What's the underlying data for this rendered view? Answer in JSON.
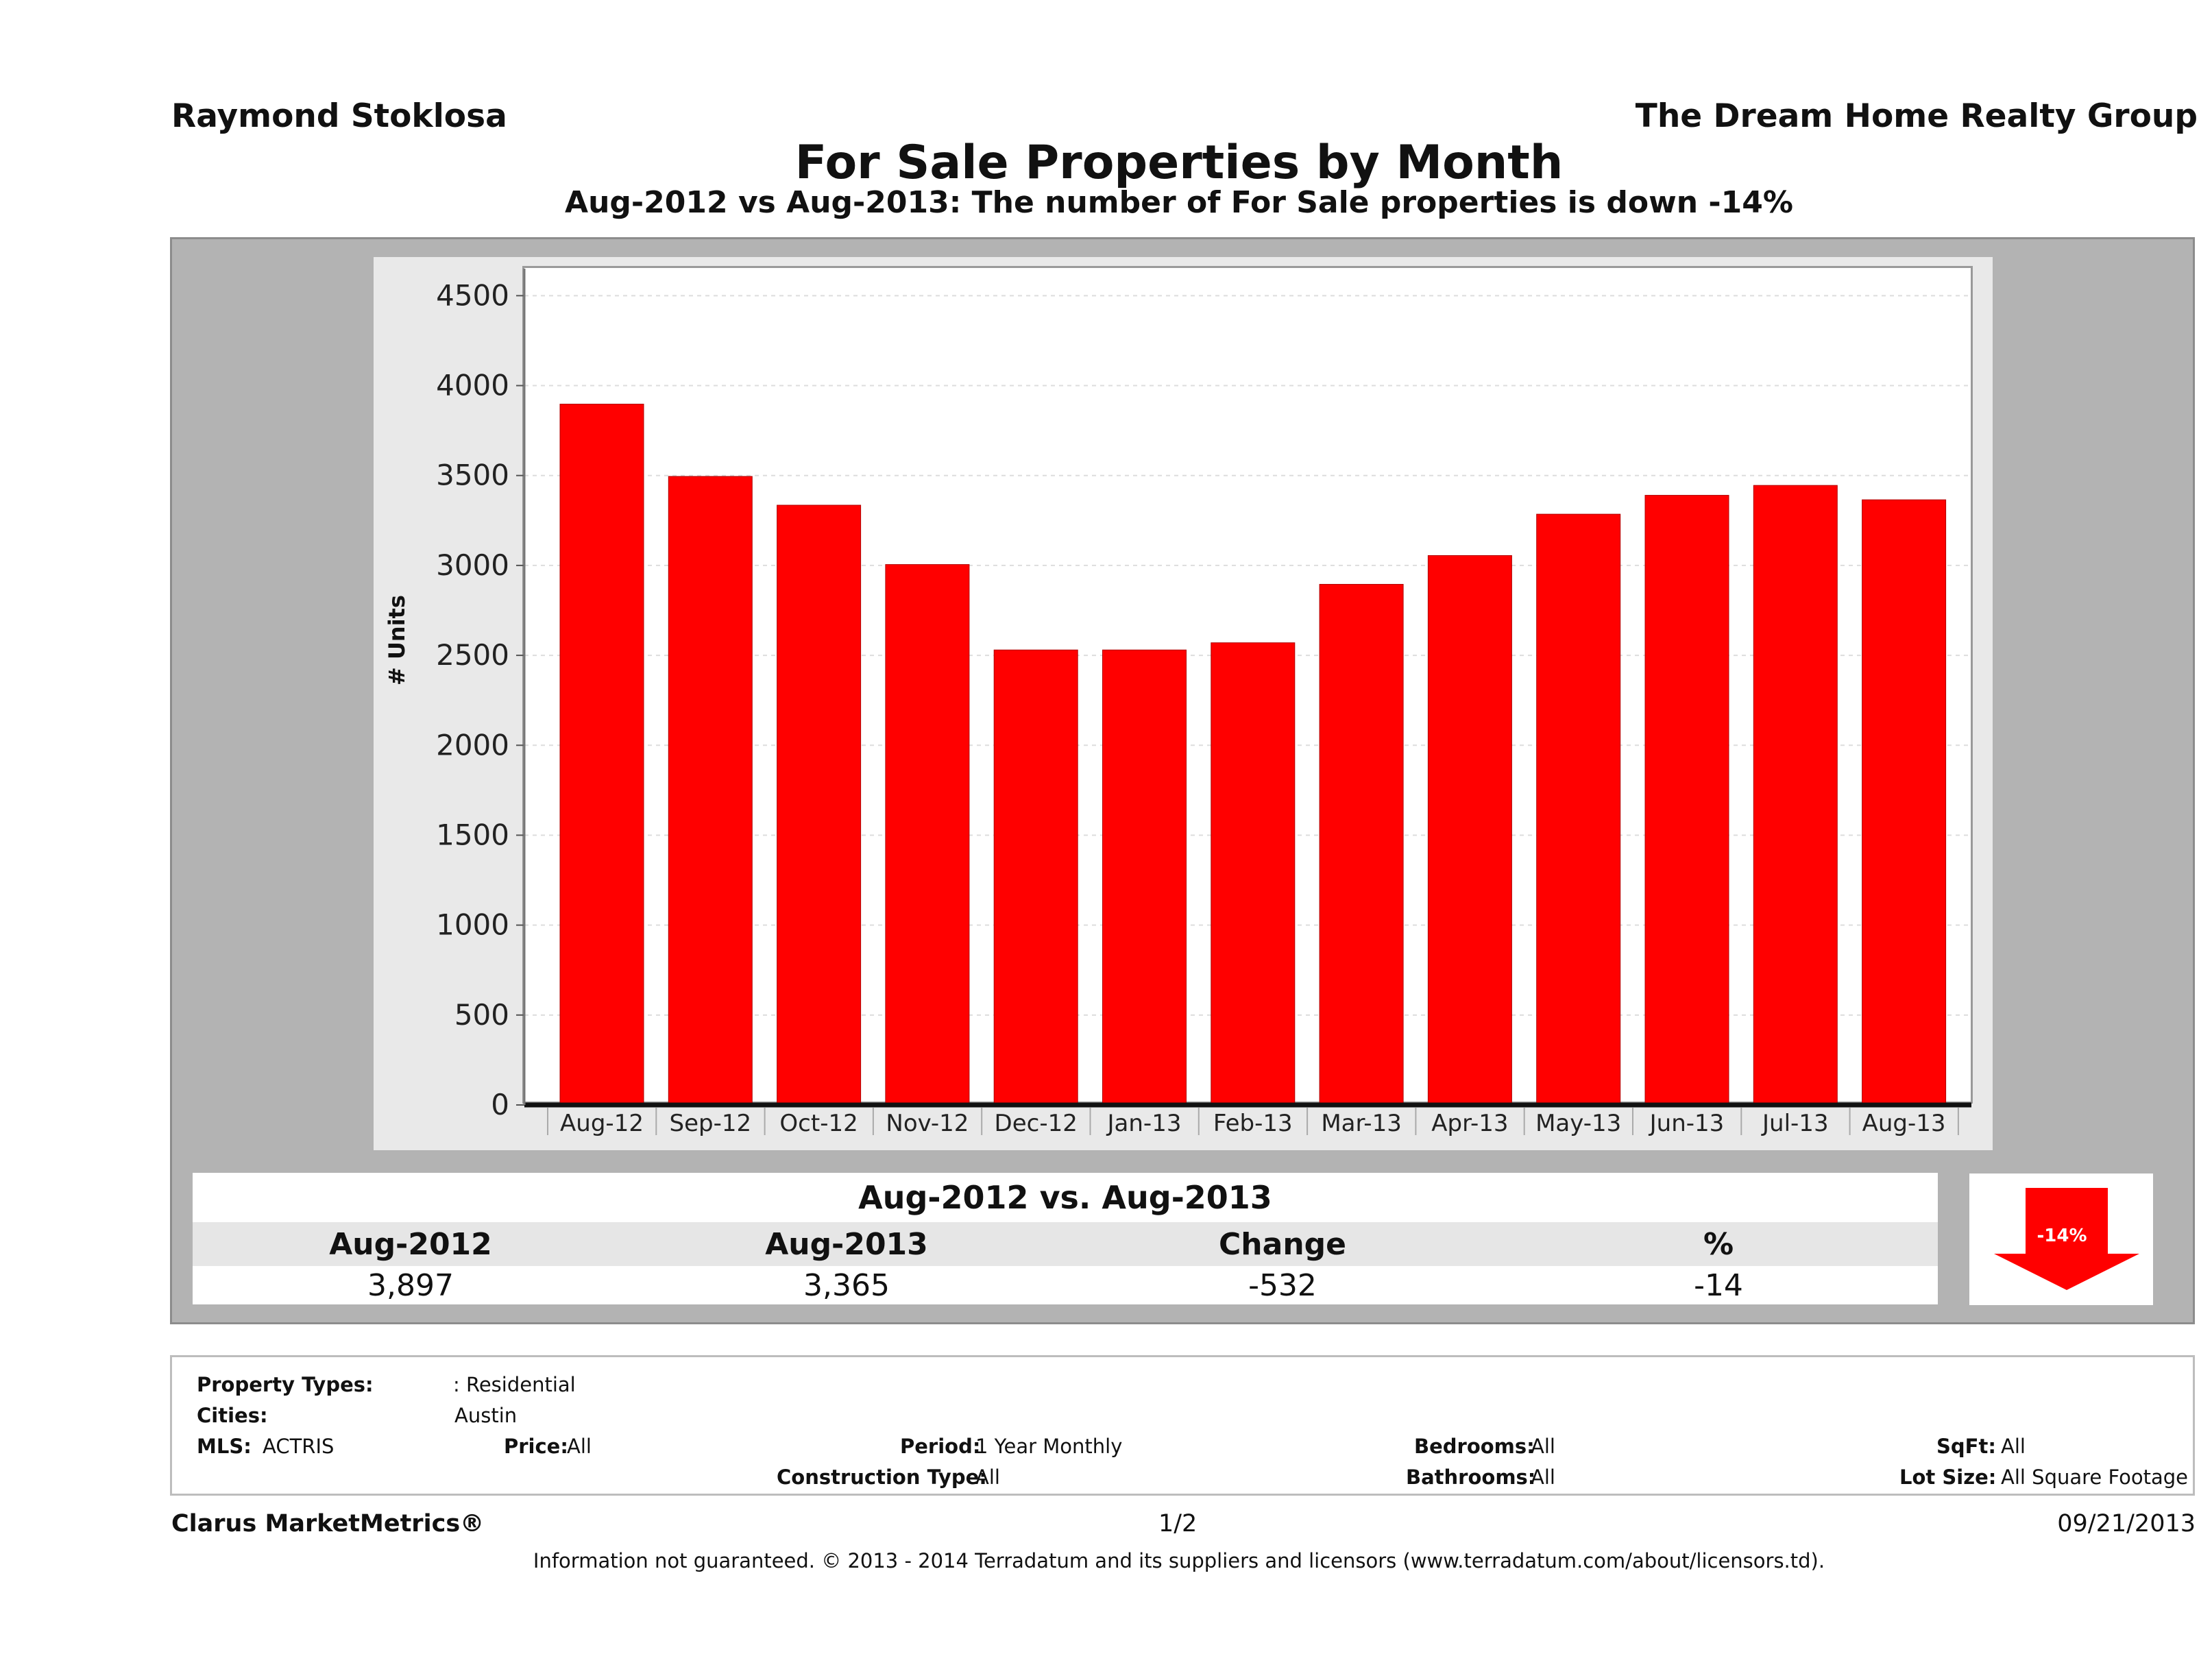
{
  "header": {
    "agent": "Raymond Stoklosa",
    "company": "The Dream Home Realty Group",
    "title": "For Sale Properties by Month",
    "subtitle": "Aug-2012 vs Aug-2013: The number of For Sale  properties is down -14%"
  },
  "chart_data": {
    "type": "bar",
    "title": "For Sale Properties by Month",
    "ylabel": "# Units",
    "categories": [
      "Aug-12",
      "Sep-12",
      "Oct-12",
      "Nov-12",
      "Dec-12",
      "Jan-13",
      "Feb-13",
      "Mar-13",
      "Apr-13",
      "May-13",
      "Jun-13",
      "Jul-13",
      "Aug-13"
    ],
    "values": [
      3897,
      3495,
      3335,
      3005,
      2530,
      2530,
      2570,
      2895,
      3055,
      3285,
      3390,
      3445,
      3365
    ],
    "ylim": [
      0,
      4650
    ],
    "yticks": [
      0,
      500,
      1000,
      1500,
      2000,
      2500,
      3000,
      3500,
      4000,
      4500
    ],
    "grid": true,
    "bar_color": "#ff0000"
  },
  "summary": {
    "heading": "Aug-2012 vs. Aug-2013",
    "columns": [
      "Aug-2012",
      "Aug-2013",
      "Change",
      "%"
    ],
    "values": [
      "3,897",
      "3,365",
      "-532",
      "-14"
    ],
    "badge": "-14%",
    "badge_icon": "down-arrow-icon",
    "badge_color": "#ff0000"
  },
  "filters": {
    "property_types_label": "Property Types:",
    "property_types_value": ": Residential",
    "cities_label": "Cities:",
    "cities_value": "Austin",
    "mls_label": "MLS:",
    "mls_value": "ACTRIS",
    "price_label": "Price:",
    "price_value": "All",
    "period_label": "Period:",
    "period_value": "1 Year Monthly",
    "bedrooms_label": "Bedrooms:",
    "bedrooms_value": "All",
    "sqft_label": "SqFt:",
    "sqft_value": "All",
    "construction_label": "Construction Type:",
    "construction_value": "All",
    "bathrooms_label": "Bathrooms:",
    "bathrooms_value": "All",
    "lotsize_label": "Lot Size:",
    "lotsize_value": "All Square Footage"
  },
  "footer": {
    "brand": "Clarus MarketMetrics®",
    "page": "1/2",
    "date": "09/21/2013",
    "disclaimer": "Information not guaranteed. © 2013 - 2014 Terradatum and its suppliers and licensors (www.terradatum.com/about/licensors.td)."
  }
}
